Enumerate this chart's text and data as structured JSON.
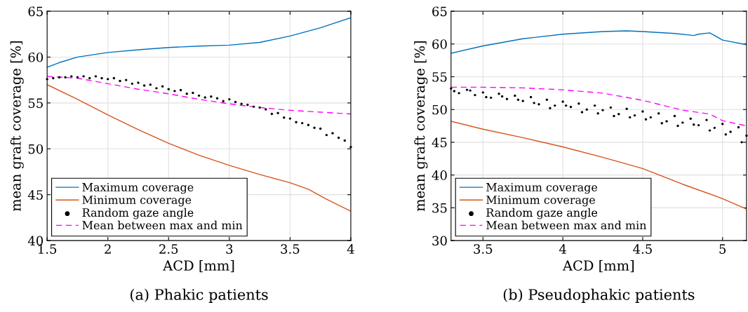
{
  "chart_data": [
    {
      "type": "line",
      "xlabel": "ACD [mm]",
      "ylabel": "mean graft coverage [%]",
      "xlim": [
        1.5,
        4
      ],
      "xticks": [
        1.5,
        2,
        2.5,
        3,
        3.5,
        4
      ],
      "ylim": [
        40,
        65
      ],
      "yticks": [
        40,
        45,
        50,
        55,
        60,
        65
      ],
      "grid": true,
      "legend": "bottom left",
      "annotations": [
        "(a) Phakic patients"
      ],
      "series": [
        {
          "name": "Maximum coverage",
          "color": "#0072bd",
          "line_style": "solid",
          "x": [
            1.5,
            1.6,
            1.75,
            2,
            2.25,
            2.5,
            2.75,
            3,
            3.25,
            3.5,
            3.75,
            4
          ],
          "values": [
            58.9,
            59.4,
            60.0,
            60.5,
            60.8,
            61.05,
            61.2,
            61.3,
            61.6,
            62.3,
            63.2,
            64.3
          ]
        },
        {
          "name": "Minimum coverage",
          "color": "#d95319",
          "line_style": "solid",
          "x": [
            1.5,
            1.75,
            2,
            2.25,
            2.5,
            2.75,
            3,
            3.25,
            3.5,
            3.65,
            3.8,
            4
          ],
          "values": [
            57.0,
            55.4,
            53.7,
            52.1,
            50.6,
            49.3,
            48.2,
            47.2,
            46.3,
            45.6,
            44.5,
            43.2
          ]
        },
        {
          "name": "Random gaze angle",
          "type": "scatter",
          "color": "#000000",
          "marker": "circle",
          "x": [
            1.5,
            1.55,
            1.6,
            1.65,
            1.7,
            1.75,
            1.8,
            1.85,
            1.9,
            1.95,
            2.0,
            2.05,
            2.1,
            2.15,
            2.2,
            2.25,
            2.3,
            2.35,
            2.4,
            2.45,
            2.5,
            2.55,
            2.6,
            2.65,
            2.7,
            2.75,
            2.8,
            2.85,
            2.9,
            2.95,
            3.0,
            3.05,
            3.1,
            3.15,
            3.2,
            3.25,
            3.3,
            3.35,
            3.4,
            3.45,
            3.5,
            3.55,
            3.6,
            3.65,
            3.7,
            3.75,
            3.8,
            3.85,
            3.9,
            3.95,
            4.0
          ],
          "values": [
            57.6,
            57.7,
            57.8,
            57.8,
            57.9,
            57.8,
            57.9,
            57.7,
            57.9,
            57.7,
            57.6,
            57.7,
            57.4,
            57.5,
            57.1,
            57.2,
            56.9,
            57.0,
            56.6,
            56.8,
            56.5,
            56.3,
            56.4,
            56.0,
            56.1,
            55.8,
            55.6,
            55.7,
            55.5,
            55.2,
            55.4,
            55.1,
            54.9,
            54.8,
            54.6,
            54.5,
            54.3,
            53.8,
            53.9,
            53.4,
            53.3,
            52.9,
            52.8,
            52.6,
            52.3,
            52.2,
            51.5,
            51.7,
            51.2,
            50.9,
            50.2
          ]
        },
        {
          "name": "Mean between max and min",
          "color": "#ff00ff",
          "line_style": "dashed",
          "x": [
            1.5,
            1.75,
            2,
            2.25,
            2.5,
            2.75,
            3,
            3.25,
            3.5,
            3.75,
            4
          ],
          "values": [
            57.9,
            57.7,
            57.1,
            56.5,
            56.0,
            55.4,
            54.9,
            54.5,
            54.2,
            54.0,
            53.8
          ]
        }
      ]
    },
    {
      "type": "line",
      "xlabel": "ACD [mm]",
      "ylabel": "mean graft coverage [%]",
      "xlim": [
        3.3,
        5.15
      ],
      "xticks": [
        3.5,
        4,
        4.5,
        5
      ],
      "ylim": [
        30,
        65
      ],
      "yticks": [
        30,
        35,
        40,
        45,
        50,
        55,
        60,
        65
      ],
      "grid": true,
      "legend": "bottom left",
      "annotations": [
        "(b) Pseudophakic patients"
      ],
      "series": [
        {
          "name": "Maximum coverage",
          "color": "#0072bd",
          "line_style": "solid",
          "x": [
            3.3,
            3.5,
            3.75,
            4,
            4.25,
            4.4,
            4.5,
            4.7,
            4.82,
            4.85,
            4.92,
            5,
            5.15
          ],
          "values": [
            58.6,
            59.7,
            60.8,
            61.5,
            61.9,
            62.0,
            61.9,
            61.6,
            61.3,
            61.5,
            61.7,
            60.6,
            59.9
          ]
        },
        {
          "name": "Minimum coverage",
          "color": "#d95319",
          "line_style": "solid",
          "x": [
            3.3,
            3.5,
            3.75,
            4,
            4.25,
            4.5,
            4.75,
            5,
            5.15
          ],
          "values": [
            48.2,
            47.0,
            45.7,
            44.3,
            42.7,
            41.0,
            38.6,
            36.4,
            34.8
          ]
        },
        {
          "name": "Random gaze angle",
          "type": "scatter",
          "color": "#000000",
          "marker": "circle",
          "x": [
            3.3,
            3.35,
            3.4,
            3.45,
            3.5,
            3.55,
            3.6,
            3.65,
            3.7,
            3.75,
            3.8,
            3.85,
            3.9,
            3.95,
            4.0,
            4.05,
            4.1,
            4.15,
            4.2,
            4.25,
            4.3,
            4.35,
            4.4,
            4.45,
            4.5,
            4.55,
            4.6,
            4.65,
            4.7,
            4.75,
            4.8,
            4.85,
            4.9,
            4.95,
            5.0,
            5.05,
            5.1,
            5.15,
            3.32,
            3.42,
            3.52,
            3.62,
            3.72,
            3.82,
            3.92,
            4.02,
            4.12,
            4.22,
            4.32,
            4.42,
            4.52,
            4.62,
            4.72,
            4.82,
            4.92,
            5.02,
            5.12
          ],
          "values": [
            53.2,
            52.5,
            53.0,
            52.2,
            52.6,
            51.8,
            52.4,
            51.6,
            52.1,
            51.3,
            51.9,
            50.8,
            51.5,
            50.6,
            51.2,
            50.4,
            50.9,
            50.0,
            50.6,
            49.9,
            50.3,
            49.3,
            50.1,
            49.1,
            49.7,
            48.8,
            49.4,
            48.2,
            49.0,
            48.0,
            48.6,
            47.6,
            48.4,
            47.2,
            47.8,
            46.6,
            47.3,
            46.0,
            52.8,
            52.9,
            51.9,
            52.0,
            51.5,
            51.0,
            50.2,
            50.6,
            49.6,
            49.4,
            49.0,
            48.8,
            48.5,
            47.9,
            47.5,
            47.7,
            46.8,
            46.2,
            45.0
          ]
        },
        {
          "name": "Mean between max and min",
          "color": "#ff00ff",
          "line_style": "dashed",
          "x": [
            3.3,
            3.5,
            3.75,
            4,
            4.25,
            4.5,
            4.75,
            4.92,
            5,
            5.15
          ],
          "values": [
            53.4,
            53.4,
            53.3,
            53.0,
            52.5,
            51.4,
            49.9,
            49.3,
            48.3,
            47.5
          ]
        }
      ]
    }
  ]
}
